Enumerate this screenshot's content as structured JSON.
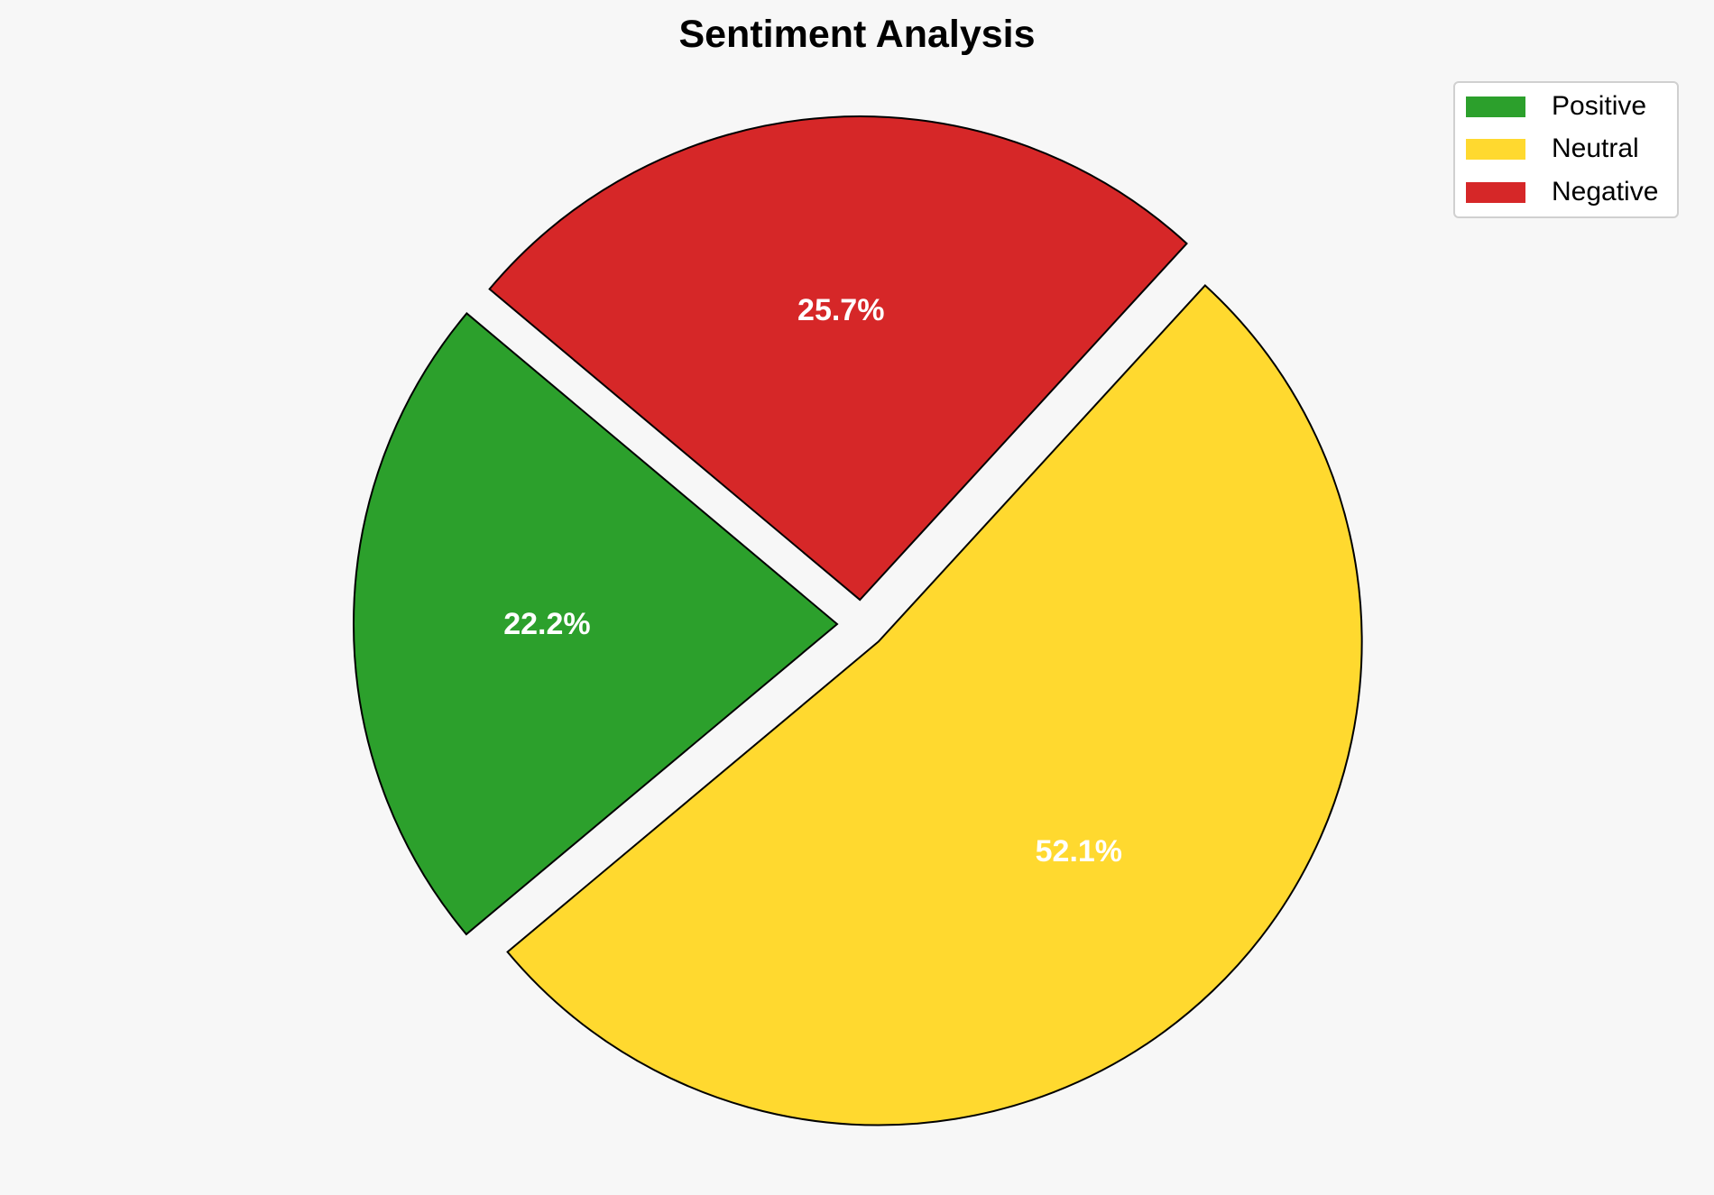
{
  "chart_data": {
    "type": "pie",
    "title": "Sentiment Analysis",
    "categories": [
      "Positive",
      "Neutral",
      "Negative"
    ],
    "values": [
      22.2,
      52.1,
      25.7
    ],
    "labels": [
      "22.2%",
      "52.1%",
      "25.7%"
    ],
    "colors": [
      "#2ca02c",
      "#ffd92f",
      "#d62728"
    ],
    "start_angle": 140,
    "exploded": true,
    "legend_position": "top-right"
  }
}
